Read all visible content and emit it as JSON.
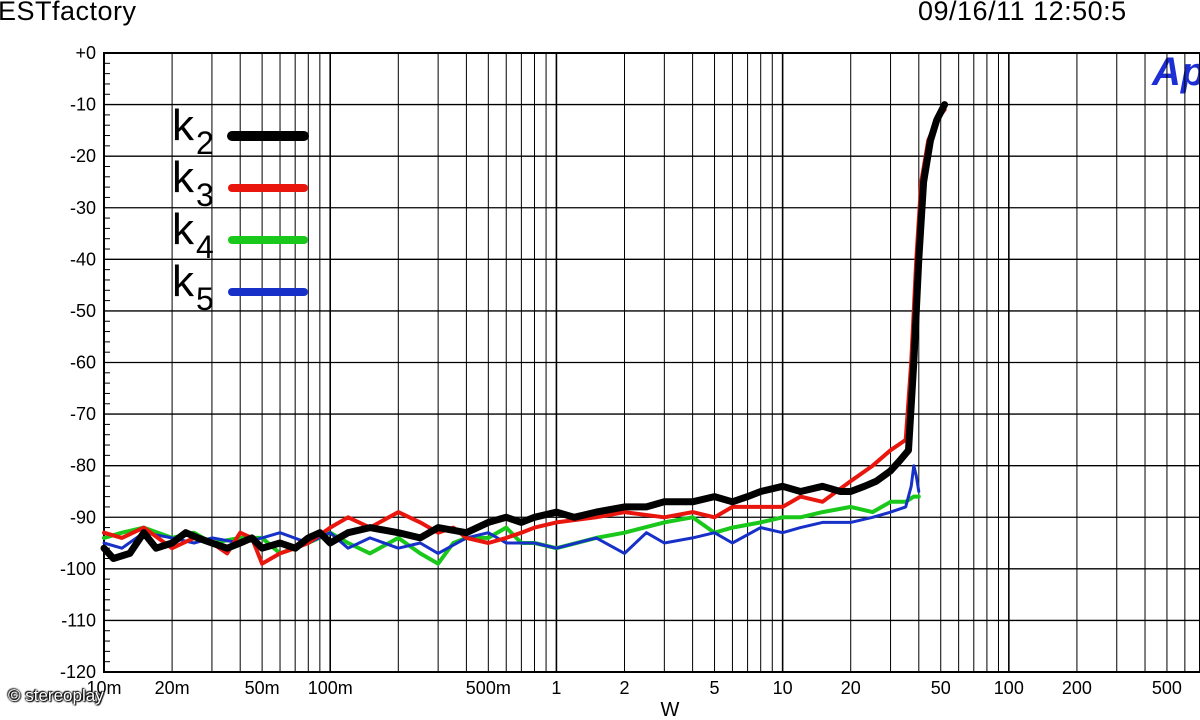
{
  "header": {
    "left": "ESTfactory",
    "right": "09/16/11 12:50:5"
  },
  "logo_text": "Ap",
  "watermark": "© stereoplay",
  "chart_data": {
    "type": "line",
    "title": "",
    "xlabel": "W",
    "ylabel": "",
    "xscale": "log",
    "xlim": [
      0.01,
      700
    ],
    "ylim": [
      -120,
      0
    ],
    "grid": true,
    "legend_position": "top-left",
    "y_ticks": [
      0,
      -10,
      -20,
      -30,
      -40,
      -50,
      -60,
      -70,
      -80,
      -90,
      -100,
      -110,
      -120
    ],
    "y_tick_labels": [
      "+0",
      "-10",
      "-20",
      "-30",
      "-40",
      "-50",
      "-60",
      "-70",
      "-80",
      "-90",
      "-100",
      "-110",
      "-120"
    ],
    "x_ticks": [
      0.01,
      0.02,
      0.05,
      0.1,
      0.5,
      1,
      2,
      5,
      10,
      20,
      50,
      100,
      200,
      500
    ],
    "x_tick_labels": [
      "10m",
      "20m",
      "50m",
      "100m",
      "500m",
      "1",
      "2",
      "5",
      "10",
      "20",
      "50",
      "100",
      "200",
      "500"
    ],
    "series": [
      {
        "name": "k2",
        "sub": "2",
        "color": "#000000",
        "width": 7,
        "x": [
          0.01,
          0.011,
          0.013,
          0.015,
          0.017,
          0.02,
          0.023,
          0.026,
          0.03,
          0.035,
          0.04,
          0.045,
          0.05,
          0.06,
          0.07,
          0.08,
          0.09,
          0.1,
          0.12,
          0.15,
          0.2,
          0.25,
          0.3,
          0.4,
          0.5,
          0.6,
          0.7,
          0.8,
          1,
          1.2,
          1.5,
          2,
          2.5,
          3,
          4,
          5,
          6,
          7,
          8,
          10,
          12,
          15,
          18,
          20,
          23,
          26,
          30,
          33,
          36,
          38,
          40,
          42,
          45,
          48,
          52
        ],
        "y": [
          -96,
          -98,
          -97,
          -93,
          -96,
          -95,
          -93,
          -94,
          -95,
          -96,
          -95,
          -94,
          -96,
          -95,
          -96,
          -94,
          -93,
          -95,
          -93,
          -92,
          -93,
          -94,
          -92,
          -93,
          -91,
          -90,
          -91,
          -90,
          -89,
          -90,
          -89,
          -88,
          -88,
          -87,
          -87,
          -86,
          -87,
          -86,
          -85,
          -84,
          -85,
          -84,
          -85,
          -85,
          -84,
          -83,
          -81,
          -79,
          -77,
          -60,
          -40,
          -25,
          -17,
          -13,
          -10
        ]
      },
      {
        "name": "k3",
        "sub": "3",
        "color": "#e8160d",
        "width": 4,
        "x": [
          0.01,
          0.012,
          0.015,
          0.02,
          0.025,
          0.03,
          0.035,
          0.04,
          0.045,
          0.05,
          0.06,
          0.07,
          0.08,
          0.1,
          0.12,
          0.15,
          0.2,
          0.25,
          0.3,
          0.35,
          0.4,
          0.5,
          0.6,
          0.7,
          0.8,
          1,
          1.5,
          2,
          3,
          4,
          5,
          6,
          8,
          10,
          12,
          15,
          20,
          25,
          30,
          35,
          37,
          39,
          41,
          44,
          48,
          52
        ],
        "y": [
          -93,
          -94,
          -92,
          -96,
          -94,
          -95,
          -97,
          -93,
          -94,
          -99,
          -97,
          -96,
          -95,
          -92,
          -90,
          -92,
          -89,
          -91,
          -93,
          -92,
          -94,
          -95,
          -94,
          -93,
          -92,
          -91,
          -90,
          -89,
          -90,
          -89,
          -90,
          -88,
          -88,
          -88,
          -86,
          -87,
          -83,
          -80,
          -77,
          -75,
          -60,
          -40,
          -25,
          -17,
          -13,
          -11
        ]
      },
      {
        "name": "k4",
        "sub": "4",
        "color": "#19c81b",
        "width": 4,
        "x": [
          0.01,
          0.012,
          0.015,
          0.02,
          0.025,
          0.03,
          0.04,
          0.05,
          0.06,
          0.08,
          0.1,
          0.12,
          0.15,
          0.2,
          0.25,
          0.3,
          0.35,
          0.4,
          0.5,
          0.6,
          0.7,
          0.8,
          1,
          1.5,
          2,
          3,
          4,
          5,
          6,
          8,
          10,
          12,
          15,
          20,
          25,
          30,
          35,
          38,
          40
        ],
        "y": [
          -94,
          -93,
          -92,
          -94,
          -93,
          -95,
          -94,
          -94,
          -97,
          -95,
          -93,
          -95,
          -97,
          -94,
          -97,
          -99,
          -95,
          -94,
          -94,
          -92,
          -95,
          -95,
          -96,
          -94,
          -93,
          -91,
          -90,
          -93,
          -92,
          -91,
          -90,
          -90,
          -89,
          -88,
          -89,
          -87,
          -87,
          -86,
          -86
        ]
      },
      {
        "name": "k5",
        "sub": "5",
        "color": "#1630c8",
        "width": 3,
        "x": [
          0.01,
          0.012,
          0.015,
          0.02,
          0.025,
          0.03,
          0.04,
          0.05,
          0.06,
          0.08,
          0.1,
          0.12,
          0.15,
          0.2,
          0.25,
          0.3,
          0.4,
          0.5,
          0.6,
          0.8,
          1,
          1.5,
          2,
          2.5,
          3,
          4,
          5,
          6,
          8,
          10,
          12,
          15,
          20,
          25,
          30,
          35,
          37,
          38,
          39,
          40
        ],
        "y": [
          -95,
          -96,
          -93,
          -94,
          -95,
          -94,
          -95,
          -94,
          -93,
          -95,
          -93,
          -96,
          -94,
          -96,
          -95,
          -97,
          -94,
          -93,
          -95,
          -95,
          -96,
          -94,
          -97,
          -93,
          -95,
          -94,
          -93,
          -95,
          -92,
          -93,
          -92,
          -91,
          -91,
          -90,
          -89,
          -88,
          -84,
          -80,
          -82,
          -85
        ]
      }
    ]
  }
}
